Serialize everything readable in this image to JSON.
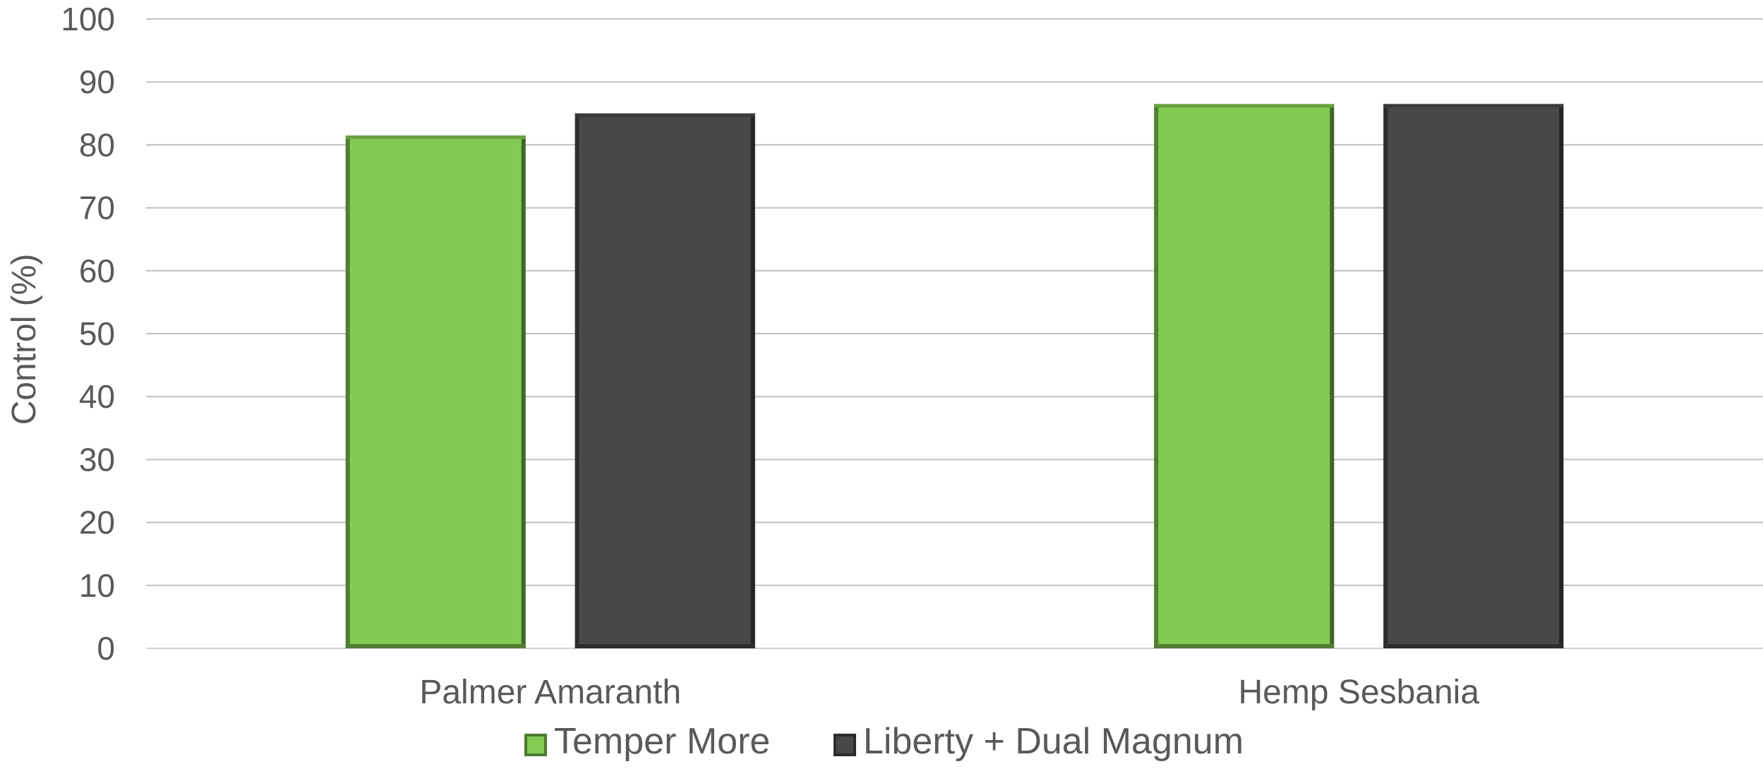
{
  "chart_data": {
    "type": "bar",
    "title": "",
    "xlabel": "",
    "ylabel": "Control (%)",
    "ylim": [
      0,
      100
    ],
    "yticks": [
      0,
      10,
      20,
      30,
      40,
      50,
      60,
      70,
      80,
      90,
      100
    ],
    "categories": [
      "Palmer Amaranth",
      "Hemp Sesbania"
    ],
    "series": [
      {
        "name": "Temper More",
        "values": [
          81.5,
          86.5
        ],
        "color": "#82cb52"
      },
      {
        "name": "Liberty + Dual Magnum",
        "values": [
          85,
          86.5
        ],
        "color": "#48484a"
      }
    ],
    "grid": true,
    "legend_position": "bottom"
  }
}
